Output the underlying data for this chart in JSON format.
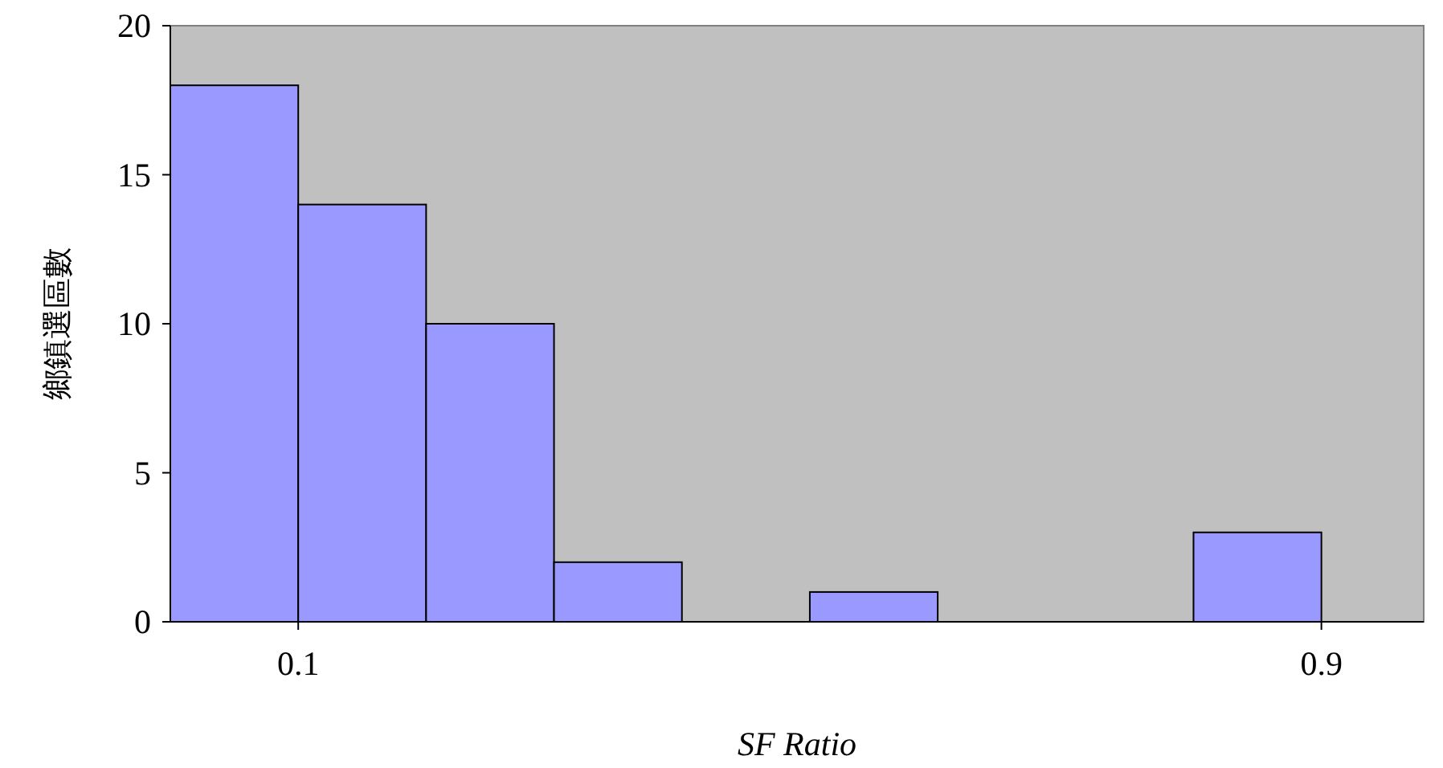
{
  "chart_data": {
    "type": "histogram",
    "xlabel": "SF Ratio",
    "ylabel": "鄉鎮選區數",
    "bins": [
      0.0,
      0.1,
      0.2,
      0.3,
      0.4,
      0.5,
      0.6,
      0.7,
      0.8,
      0.9
    ],
    "values": [
      18,
      14,
      10,
      2,
      0,
      1,
      0,
      0,
      3
    ],
    "color": "#9999ff",
    "xlim": [
      0.0,
      0.98
    ],
    "xticks": [
      0.1,
      0.9
    ],
    "ylim": [
      0,
      20
    ],
    "yticks": [
      0,
      5,
      10,
      15,
      20
    ]
  }
}
